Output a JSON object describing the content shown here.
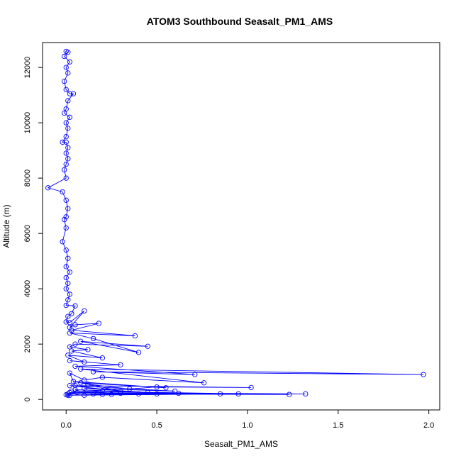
{
  "chart_data": {
    "type": "scatter",
    "title": "ATOM3 Southbound Seasalt_PM1_AMS",
    "xlabel": "Seasalt_PM1_AMS",
    "ylabel": "Altitude (m)",
    "xlim": [
      -0.13,
      2.06
    ],
    "ylim": [
      -380,
      12900
    ],
    "x_ticks": [
      "0.0",
      "0.5",
      "1.0",
      "1.5",
      "2.0"
    ],
    "y_ticks": [
      "0",
      "2000",
      "4000",
      "6000",
      "8000",
      "10000",
      "12000"
    ],
    "grid": false,
    "legend": "none",
    "color": "#0000ff",
    "series": [
      {
        "name": "",
        "x": [
          0.0,
          0.01,
          -0.01,
          0.02,
          0.0,
          0.01,
          -0.01,
          0.0,
          0.02,
          0.04,
          0.01,
          0.0,
          -0.01,
          0.02,
          0.0,
          0.01,
          0.0,
          -0.02,
          0.0,
          0.01,
          0.0,
          0.01,
          0.0,
          -0.01,
          0.0,
          -0.1,
          -0.02,
          0.0,
          0.01,
          0.0,
          -0.01,
          0.0,
          -0.02,
          0.0,
          0.01,
          0.0,
          0.02,
          0.0,
          0.01,
          0.0,
          0.02,
          0.01,
          0.0,
          0.05,
          0.03,
          0.01,
          0.0,
          0.02,
          0.1,
          0.02,
          0.05,
          0.18,
          0.03,
          0.38,
          0.02,
          0.15,
          0.4,
          0.08,
          0.45,
          0.05,
          0.02,
          0.12,
          0.03,
          0.2,
          0.01,
          0.1,
          0.02,
          0.3,
          0.05,
          0.71,
          0.15,
          1.97,
          0.08,
          0.76,
          0.2,
          0.1,
          0.02,
          0.05,
          1.02,
          0.5,
          0.35,
          0.12,
          0.04,
          0.55,
          0.08,
          0.3,
          0.02,
          0.6,
          0.1,
          0.45,
          0.05,
          0.2,
          0.01,
          0.85,
          0.3,
          0.03,
          1.23,
          0.15,
          1.32,
          0.06,
          0.62,
          0.25,
          0.95,
          0.01,
          0.5,
          0.02,
          0.4,
          0.1,
          0.2,
          0.02,
          0.0
        ],
        "y": [
          12580,
          12550,
          12400,
          12200,
          12000,
          11800,
          11500,
          11200,
          11050,
          11050,
          10800,
          10500,
          10350,
          10200,
          10000,
          9800,
          9500,
          9300,
          9300,
          9100,
          8900,
          8700,
          8500,
          8300,
          8000,
          7650,
          7500,
          7200,
          6900,
          6600,
          6500,
          6200,
          5700,
          5400,
          5100,
          4800,
          4600,
          4400,
          4200,
          4000,
          3800,
          3600,
          3400,
          3380,
          3100,
          3000,
          2800,
          2780,
          3200,
          2600,
          2700,
          2750,
          2500,
          2300,
          2400,
          2200,
          1700,
          2100,
          1920,
          2000,
          1900,
          1800,
          1750,
          1500,
          1600,
          1350,
          1400,
          1250,
          1200,
          900,
          1000,
          900,
          1100,
          600,
          800,
          700,
          950,
          500,
          430,
          450,
          380,
          550,
          650,
          420,
          600,
          300,
          500,
          300,
          400,
          250,
          350,
          320,
          200,
          200,
          220,
          300,
          180,
          200,
          200,
          250,
          220,
          180,
          200,
          150,
          200,
          250,
          200,
          150,
          180,
          150,
          170
        ]
      }
    ]
  }
}
